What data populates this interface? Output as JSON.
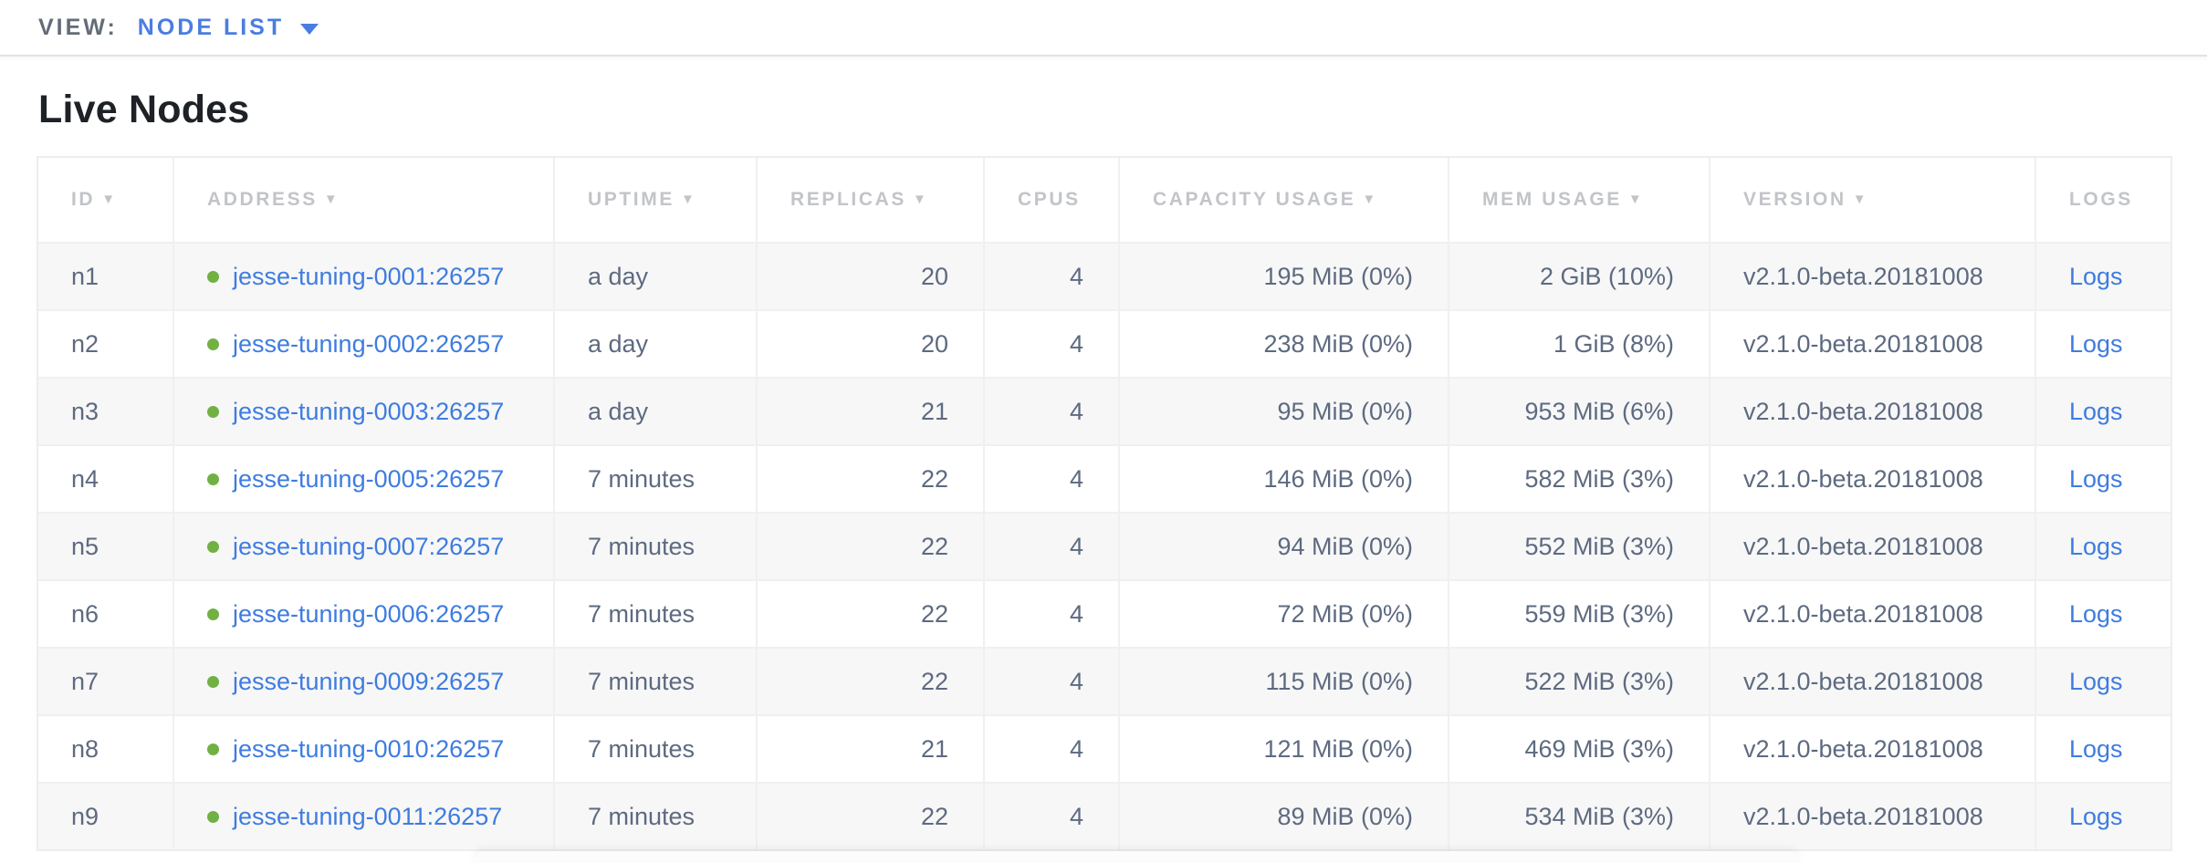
{
  "view_bar": {
    "label": "VIEW:",
    "selected": "NODE LIST"
  },
  "page": {
    "title": "Live Nodes"
  },
  "colors": {
    "accent_blue": "#4a7de1",
    "link_blue": "#3e7ce0",
    "live_dot_green": "#71b144",
    "header_gray": "#c2c4c8",
    "cell_text": "#5d6a80",
    "row_stripe": "#f7f7f7"
  },
  "table": {
    "columns": [
      {
        "key": "id",
        "label": "ID",
        "sortable": true,
        "align": "left"
      },
      {
        "key": "address",
        "label": "ADDRESS",
        "sortable": true,
        "align": "left"
      },
      {
        "key": "uptime",
        "label": "UPTIME",
        "sortable": true,
        "align": "left"
      },
      {
        "key": "replicas",
        "label": "REPLICAS",
        "sortable": true,
        "align": "right"
      },
      {
        "key": "cpus",
        "label": "CPUS",
        "sortable": false,
        "align": "right"
      },
      {
        "key": "capacity_usage",
        "label": "CAPACITY USAGE",
        "sortable": true,
        "align": "right"
      },
      {
        "key": "mem_usage",
        "label": "MEM USAGE",
        "sortable": true,
        "align": "right"
      },
      {
        "key": "version",
        "label": "VERSION",
        "sortable": true,
        "align": "left"
      },
      {
        "key": "logs",
        "label": "LOGS",
        "sortable": false,
        "align": "left"
      }
    ],
    "sort_arrow_icon": "▼",
    "rows": [
      {
        "id": "n1",
        "status": "live",
        "address": "jesse-tuning-0001:26257",
        "uptime": "a day",
        "replicas": "20",
        "cpus": "4",
        "capacity_usage": "195 MiB (0%)",
        "mem_usage": "2 GiB (10%)",
        "version": "v2.1.0-beta.20181008",
        "logs": "Logs"
      },
      {
        "id": "n2",
        "status": "live",
        "address": "jesse-tuning-0002:26257",
        "uptime": "a day",
        "replicas": "20",
        "cpus": "4",
        "capacity_usage": "238 MiB (0%)",
        "mem_usage": "1 GiB (8%)",
        "version": "v2.1.0-beta.20181008",
        "logs": "Logs"
      },
      {
        "id": "n3",
        "status": "live",
        "address": "jesse-tuning-0003:26257",
        "uptime": "a day",
        "replicas": "21",
        "cpus": "4",
        "capacity_usage": "95 MiB (0%)",
        "mem_usage": "953 MiB (6%)",
        "version": "v2.1.0-beta.20181008",
        "logs": "Logs"
      },
      {
        "id": "n4",
        "status": "live",
        "address": "jesse-tuning-0005:26257",
        "uptime": "7 minutes",
        "replicas": "22",
        "cpus": "4",
        "capacity_usage": "146 MiB (0%)",
        "mem_usage": "582 MiB (3%)",
        "version": "v2.1.0-beta.20181008",
        "logs": "Logs"
      },
      {
        "id": "n5",
        "status": "live",
        "address": "jesse-tuning-0007:26257",
        "uptime": "7 minutes",
        "replicas": "22",
        "cpus": "4",
        "capacity_usage": "94 MiB (0%)",
        "mem_usage": "552 MiB (3%)",
        "version": "v2.1.0-beta.20181008",
        "logs": "Logs"
      },
      {
        "id": "n6",
        "status": "live",
        "address": "jesse-tuning-0006:26257",
        "uptime": "7 minutes",
        "replicas": "22",
        "cpus": "4",
        "capacity_usage": "72 MiB (0%)",
        "mem_usage": "559 MiB (3%)",
        "version": "v2.1.0-beta.20181008",
        "logs": "Logs"
      },
      {
        "id": "n7",
        "status": "live",
        "address": "jesse-tuning-0009:26257",
        "uptime": "7 minutes",
        "replicas": "22",
        "cpus": "4",
        "capacity_usage": "115 MiB (0%)",
        "mem_usage": "522 MiB (3%)",
        "version": "v2.1.0-beta.20181008",
        "logs": "Logs"
      },
      {
        "id": "n8",
        "status": "live",
        "address": "jesse-tuning-0010:26257",
        "uptime": "7 minutes",
        "replicas": "21",
        "cpus": "4",
        "capacity_usage": "121 MiB (0%)",
        "mem_usage": "469 MiB (3%)",
        "version": "v2.1.0-beta.20181008",
        "logs": "Logs"
      },
      {
        "id": "n9",
        "status": "live",
        "address": "jesse-tuning-0011:26257",
        "uptime": "7 minutes",
        "replicas": "22",
        "cpus": "4",
        "capacity_usage": "89 MiB (0%)",
        "mem_usage": "534 MiB (3%)",
        "version": "v2.1.0-beta.20181008",
        "logs": "Logs"
      }
    ]
  }
}
